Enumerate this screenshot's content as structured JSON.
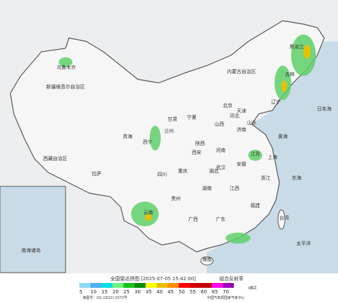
{
  "header": {
    "title": "全国雷达拼图 [2025-07-05 15:42:00]",
    "product": "组合反射率",
    "unit": "dBZ",
    "approval": "审图号：GS (2022) 0372号",
    "source": "中国气象局国家气象中心"
  },
  "legend": {
    "levels": [
      5,
      10,
      15,
      20,
      25,
      30,
      35,
      40,
      45,
      50,
      55,
      60,
      65,
      70
    ],
    "colors": [
      "#8fd8f8",
      "#4fb0f0",
      "#00e0e0",
      "#6ef27c",
      "#19c31a",
      "#078c07",
      "#ffff00",
      "#e8c000",
      "#ff9000",
      "#ff0000",
      "#d00000",
      "#c00000",
      "#ff00f0",
      "#9c00b4"
    ]
  },
  "places": [
    "新疆维吾尔自治区",
    "乌鲁木齐",
    "西藏自治区",
    "拉萨",
    "青海",
    "西宁",
    "甘肃",
    "兰州",
    "宁夏",
    "内蒙古自治区",
    "陕西",
    "西安",
    "山西",
    "河北",
    "北京",
    "天津",
    "山东",
    "济南",
    "河南",
    "湖北",
    "武汉",
    "湖南",
    "江西",
    "浙江",
    "上海",
    "江苏",
    "安徽",
    "福建",
    "台湾",
    "广东",
    "广西",
    "海南",
    "云南",
    "贵州",
    "重庆",
    "四川",
    "辽宁",
    "吉林",
    "黑龙江",
    "日本海",
    "黄海",
    "东海",
    "太平洋",
    "南海诸岛"
  ]
}
